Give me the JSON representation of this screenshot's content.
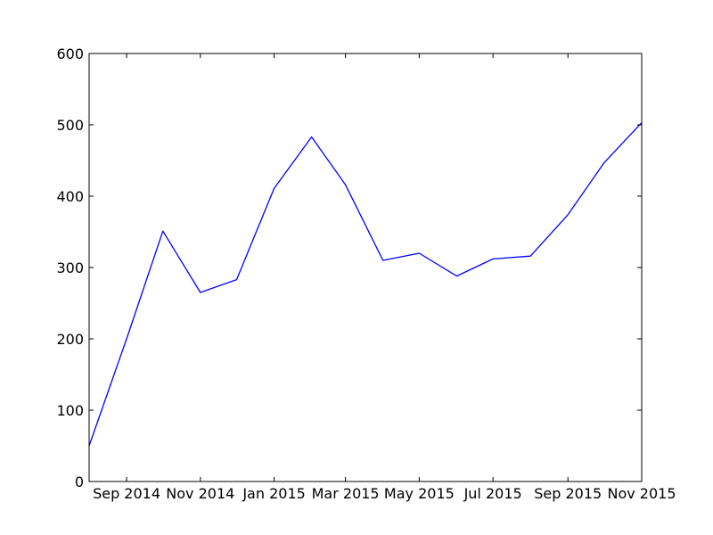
{
  "chart_data": {
    "type": "line",
    "title": "",
    "xlabel": "",
    "ylabel": "",
    "x_ticks": [
      {
        "date": "2014-09-01",
        "label": "Sep 2014"
      },
      {
        "date": "2014-11-01",
        "label": "Nov 2014"
      },
      {
        "date": "2015-01-01",
        "label": "Jan 2015"
      },
      {
        "date": "2015-03-01",
        "label": "Mar 2015"
      },
      {
        "date": "2015-05-01",
        "label": "May 2015"
      },
      {
        "date": "2015-07-01",
        "label": "Jul 2015"
      },
      {
        "date": "2015-09-01",
        "label": "Sep 2015"
      },
      {
        "date": "2015-11-01",
        "label": "Nov 2015"
      }
    ],
    "xlim": [
      "2014-08-01",
      "2015-11-01"
    ],
    "ylim": [
      0,
      600
    ],
    "y_ticks": [
      0,
      100,
      200,
      300,
      400,
      500,
      600
    ],
    "grid": false,
    "series": [
      {
        "color": "#0000ff",
        "points": [
          {
            "x": "2014-08-01",
            "y": 50
          },
          {
            "x": "2014-09-01",
            "y": 200
          },
          {
            "x": "2014-10-01",
            "y": 351
          },
          {
            "x": "2014-11-01",
            "y": 265
          },
          {
            "x": "2014-12-01",
            "y": 283
          },
          {
            "x": "2015-01-01",
            "y": 411
          },
          {
            "x": "2015-02-01",
            "y": 483
          },
          {
            "x": "2015-03-01",
            "y": 416
          },
          {
            "x": "2015-04-01",
            "y": 310
          },
          {
            "x": "2015-05-01",
            "y": 320
          },
          {
            "x": "2015-06-01",
            "y": 288
          },
          {
            "x": "2015-07-01",
            "y": 312
          },
          {
            "x": "2015-08-01",
            "y": 316
          },
          {
            "x": "2015-09-01",
            "y": 374
          },
          {
            "x": "2015-10-01",
            "y": 447
          },
          {
            "x": "2015-11-01",
            "y": 503
          }
        ]
      }
    ]
  }
}
